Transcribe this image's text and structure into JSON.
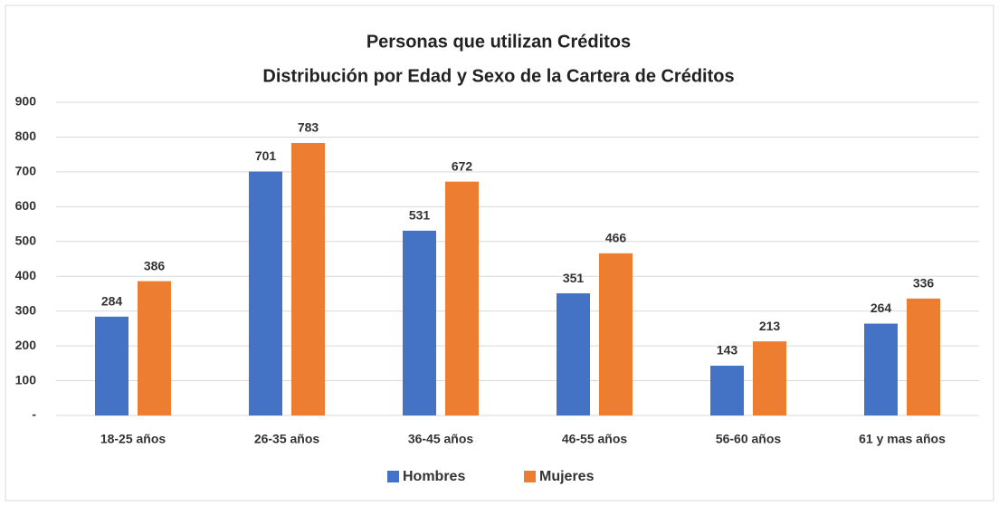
{
  "chart_data": {
    "type": "bar",
    "title": "Personas que utilizan Créditos",
    "subtitle": "Distribución por Edad y Sexo de la Cartera de Créditos",
    "categories": [
      "18-25 años",
      "26-35 años",
      "36-45 años",
      "46-55 años",
      "56-60 años",
      "61 y mas años"
    ],
    "series": [
      {
        "name": "Hombres",
        "color": "#4472c4",
        "values": [
          284,
          701,
          531,
          351,
          143,
          264
        ]
      },
      {
        "name": "Mujeres",
        "color": "#ed7d31",
        "values": [
          386,
          783,
          672,
          466,
          213,
          336
        ]
      }
    ],
    "ylim": [
      0,
      900
    ],
    "yticks": [
      {
        "value": 0,
        "label": "-"
      },
      100,
      200,
      300,
      400,
      500,
      600,
      700,
      800,
      900
    ],
    "grid": true,
    "legend": "bottom"
  }
}
